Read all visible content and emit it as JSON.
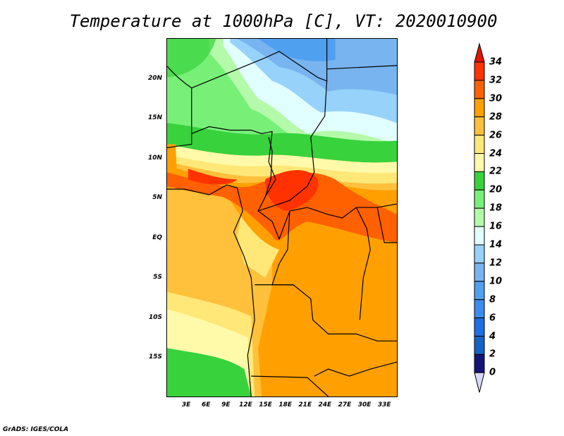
{
  "title": "Temperature at 1000hPa [C], VT: 2020010900",
  "credit": "GrADS: IGES/COLA",
  "lat_labels": [
    {
      "v": 20,
      "t": "20N"
    },
    {
      "v": 15,
      "t": "15N"
    },
    {
      "v": 10,
      "t": "10N"
    },
    {
      "v": 5,
      "t": "5N"
    },
    {
      "v": 0,
      "t": "EQ"
    },
    {
      "v": -5,
      "t": "5S"
    },
    {
      "v": -10,
      "t": "10S"
    },
    {
      "v": -15,
      "t": "15S"
    }
  ],
  "lon_labels": [
    {
      "v": 3,
      "t": "3E"
    },
    {
      "v": 6,
      "t": "6E"
    },
    {
      "v": 9,
      "t": "9E"
    },
    {
      "v": 12,
      "t": "12E"
    },
    {
      "v": 15,
      "t": "15E"
    },
    {
      "v": 18,
      "t": "18E"
    },
    {
      "v": 21,
      "t": "21E"
    },
    {
      "v": 24,
      "t": "24E"
    },
    {
      "v": 27,
      "t": "27E"
    },
    {
      "v": 30,
      "t": "30E"
    },
    {
      "v": 33,
      "t": "33E"
    }
  ],
  "map_extent": {
    "lon": [
      0,
      35
    ],
    "lat": [
      -20,
      25
    ]
  },
  "colorbar": {
    "labels": [
      "34",
      "32",
      "30",
      "28",
      "26",
      "24",
      "22",
      "20",
      "18",
      "16",
      "14",
      "12",
      "10",
      "8",
      "6",
      "4",
      "2",
      "0"
    ],
    "over_color": "#e11400",
    "under_color": "#d8d8ff",
    "colors": [
      "#ff3200",
      "#ff6000",
      "#ffa000",
      "#ffc03c",
      "#ffe878",
      "#fffaaa",
      "#37d23c",
      "#78f078",
      "#b4faaa",
      "#e1ffff",
      "#96d2fa",
      "#78b4f0",
      "#50a0f0",
      "#3c8cf0",
      "#1e6ee6",
      "#1464c8",
      "#141478"
    ]
  }
}
